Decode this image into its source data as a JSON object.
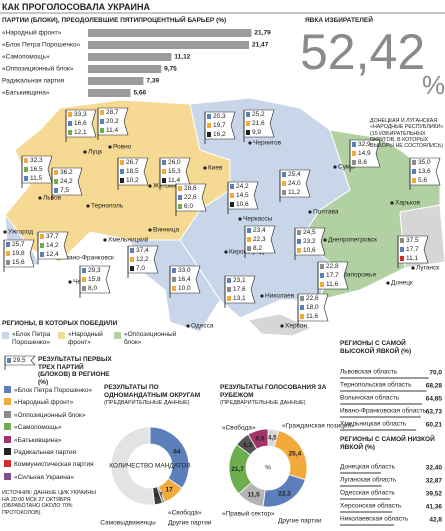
{
  "title": "КАК ПРОГОЛОСОВАЛА УКРАИНА",
  "chart_data": [
    {
      "type": "bar",
      "title": "ПАРТИИ (БЛОКИ), ПРЕОДОЛЕВШИЕ ПЯТИПРОЦЕНТНЫЙ БАРЬЕР (%)",
      "categories": [
        "«Народный фронт»",
        "«Блок Петра Порошенко»",
        "«Самопомощь»",
        "«Оппозиционный блок»",
        "Радикальная партия",
        "«Батькивщина»"
      ],
      "values": [
        21.79,
        21.47,
        11.12,
        9.75,
        7.39,
        5.66
      ],
      "value_labels": [
        "21,79",
        "21,47",
        "11,12",
        "9,75",
        "7,39",
        "5,66"
      ],
      "color": "#9b9b9b",
      "xlim": [
        0,
        22
      ]
    },
    {
      "type": "donut",
      "title": "РЕЗУЛЬТАТЫ ПО ОДНОМАНДАТНЫМ ОКРУГАМ",
      "subtitle": "(ПРЕДВАРИТЕЛЬНЫЕ ДАННЫЕ)",
      "center_label": "КОЛИЧЕСТВО МАНДАТОВ",
      "categories": [
        null,
        null,
        "Другие партии",
        "«Свобода»",
        "Самовыдвиженцы"
      ],
      "values": [
        64,
        17,
        2,
        6,
        96
      ],
      "value_labels": [
        "64",
        "17",
        "2",
        "6",
        null
      ],
      "colors": [
        "#5b7fb9",
        "#f2aa3c",
        "#8c8c8c",
        "#3d3d3d",
        "#e3e3e3"
      ]
    },
    {
      "type": "donut",
      "title": "РЕЗУЛЬТАТЫ ГОЛОСОВАНИЯ ЗА РУБЕЖОМ",
      "subtitle": "(ПРЕДВАРИТЕЛЬНЫЕ ДАННЫЕ)",
      "center_label": "%",
      "categories": [
        "«Гражданская позиция»",
        null,
        null,
        "Другие партии",
        null,
        "«Правый сектор»",
        "«Свобода»"
      ],
      "values": [
        4.5,
        25.4,
        22.2,
        11.5,
        21.7,
        6.3,
        8.5
      ],
      "value_labels": [
        "4,5",
        "25,4",
        "22,2",
        "11,5",
        "21,7",
        "6,3",
        "8,5"
      ],
      "colors": [
        "#d9d9d9",
        "#f2aa3c",
        "#5b7fb9",
        "#b5b5b5",
        "#6fae4f",
        "#555555",
        "#a0346b"
      ]
    },
    {
      "type": "list",
      "title": "РЕГИОНЫ С САМОЙ ВЫСОКОЙ ЯВКОЙ (%)",
      "categories": [
        "Львовская область",
        "Тернопольская область",
        "Волынская область",
        "Ивано-Франковская область",
        "Хмельницкая область"
      ],
      "values": [
        70.0,
        68.28,
        64.85,
        63.73,
        60.21
      ],
      "value_labels": [
        "70,0",
        "68,28",
        "64,85",
        "63,73",
        "60,21"
      ],
      "color": "#9b9b9b",
      "xlim": [
        0,
        75
      ]
    },
    {
      "type": "list",
      "title": "РЕГИОНЫ С САМОЙ НИЗКОЙ ЯВКОЙ (%)",
      "categories": [
        "Донецкая область",
        "Луганская область",
        "Одесская область",
        "Херсонская область",
        "Николаевская область"
      ],
      "values": [
        32.4,
        32.87,
        39.52,
        41.36,
        42.8
      ],
      "value_labels": [
        "32,40",
        "32,87",
        "39,52",
        "41,36",
        "42,8"
      ],
      "color": "#9b9b9b",
      "xlim": [
        0,
        75
      ]
    }
  ],
  "turnout": {
    "title": "ЯВКА ИЗБИРАТЕЛЕЙ",
    "value": 52.42,
    "value_label": "52,42",
    "unit": "%"
  },
  "note": "ДОНЕЦКАЯ И ЛУГАНСКАЯ «НАРОДНЫЕ РЕСПУБЛИКИ» (15 ИЗБИРАТЕЛЬНЫХ ОКРУГОВ, В КОТОРЫХ ВЫБОРЫ НЕ СОСТОЯЛИСЬ)",
  "map": {
    "cities": [
      "Луцк",
      "Ровно",
      "Львов",
      "Тернополь",
      "Хмельницкий",
      "Житомир",
      "Киев",
      "Чернигов",
      "Сумы",
      "Харьков",
      "Полтава",
      "Черкассы",
      "Винница",
      "Ужгород",
      "Ивано-Франковск",
      "Черновцы",
      "Кировоград",
      "Днепропетровск",
      "Запорожье",
      "Донецк",
      "Луганск",
      "Николаев",
      "Херсон",
      "Одесса"
    ],
    "flags": [
      {
        "values": [
          33.3,
          16.6,
          12.1
        ],
        "value_labels": [
          "33,3",
          "16,6",
          "12,1"
        ]
      },
      {
        "values": [
          28.7,
          20.2,
          11.4
        ],
        "value_labels": [
          "28,7",
          "20,2",
          "11,4"
        ]
      },
      {
        "values": [
          20.3,
          19.7,
          16.2
        ],
        "value_labels": [
          "20,3",
          "19,7",
          "16,2"
        ]
      },
      {
        "values": [
          25.2,
          21.6,
          9.9
        ],
        "value_labels": [
          "25,2",
          "21,6",
          "9,9"
        ]
      },
      {
        "values": [
          32.3,
          16.5,
          11.5
        ],
        "value_labels": [
          "32,3",
          "16,5",
          "11,5"
        ]
      },
      {
        "values": [
          36.2,
          24.2,
          7.5
        ],
        "value_labels": [
          "36,2",
          "24,2",
          "7,5"
        ]
      },
      {
        "values": [
          26.7,
          18.5,
          10.2
        ],
        "value_labels": [
          "26,7",
          "18,5",
          "10,2"
        ]
      },
      {
        "values": [
          26.0,
          15.3,
          11.4
        ],
        "value_labels": [
          "26,0",
          "15,3",
          "11,4"
        ]
      },
      {
        "values": [
          28.6,
          22.6,
          6.0
        ],
        "value_labels": [
          "28,6",
          "22,6",
          "6,0"
        ]
      },
      {
        "values": [
          24.2,
          14.5,
          10.6
        ],
        "value_labels": [
          "24,2",
          "14,5",
          "10,6"
        ]
      },
      {
        "values": [
          25.4,
          24.0,
          11.2
        ],
        "value_labels": [
          "25,4",
          "24,0",
          "11,2"
        ]
      },
      {
        "values": [
          32.9,
          14.9,
          8.6
        ],
        "value_labels": [
          "32,9",
          "14,9",
          "8,6"
        ]
      },
      {
        "values": [
          35.0,
          13.6,
          5.6
        ],
        "value_labels": [
          "35,0",
          "13,6",
          "5,6"
        ]
      },
      {
        "values": [
          25.7,
          19.8,
          15.6
        ],
        "value_labels": [
          "25,7",
          "19,8",
          "15,6"
        ]
      },
      {
        "values": [
          37.7,
          14.2,
          12.4
        ],
        "value_labels": [
          "37,7",
          "14,2",
          "12,4"
        ]
      },
      {
        "values": [
          29.3,
          15.8,
          8.0
        ],
        "value_labels": [
          "29,3",
          "15,8",
          "8,0"
        ]
      },
      {
        "values": [
          37.4,
          12.2,
          7.0
        ],
        "value_labels": [
          "37,4",
          "12,2",
          "7,0"
        ]
      },
      {
        "values": [
          23.4,
          22.3,
          8.2
        ],
        "value_labels": [
          "23,4",
          "22,3",
          "8,2"
        ]
      },
      {
        "values": [
          24.5,
          23.2,
          10.6
        ],
        "value_labels": [
          "24,5",
          "23,2",
          "10,6"
        ]
      },
      {
        "values": [
          37.5,
          17.7,
          11.1
        ],
        "value_labels": [
          "37,5",
          "17,7",
          "11,1"
        ]
      },
      {
        "values": [
          33.0,
          16.4,
          10.0
        ],
        "value_labels": [
          "33,0",
          "16,4",
          "10,0"
        ]
      },
      {
        "values": [
          23.1,
          17.6,
          13.1
        ],
        "value_labels": [
          "23,1",
          "17,6",
          "13,1"
        ]
      },
      {
        "values": [
          22.6,
          18.0,
          11.6
        ],
        "value_labels": [
          "22,6",
          "18,0",
          "11,6"
        ]
      },
      {
        "values": [
          22.8,
          17.7,
          11.6
        ],
        "value_labels": [
          "22,8",
          "17,7",
          "11,6"
        ]
      }
    ]
  },
  "regions_legend": {
    "title": "РЕГИОНЫ, В КОТОРЫХ ПОБЕДИЛИ",
    "items": [
      "«Блок Петра Порошенко»",
      "«Народный фронт»",
      "«Оппозиционный блок»"
    ]
  },
  "flag_legend": {
    "value": 29.5,
    "value_label": "29,5",
    "text": "РЕЗУЛЬТАТЫ ПЕРВЫХ ТРЕХ ПАРТИЙ (БЛОКОВ) В РЕГИОНЕ (%)"
  },
  "parties_legend": [
    "«Блок Петра Порошенко»",
    "«Народный фронт»",
    "«Оппозиционный блок»",
    "«Самопомощь»",
    "«Батькивщина»",
    "Радикальная партия",
    "Коммунистическая партия",
    "«Сильная Украина»"
  ],
  "source": "ИСТОЧНИК: ДАННЫЕ ЦИК УКРАИНЫ НА 20:00 МСК 27 ОКТЯБРЯ (ОБРАБОТАНО ОКОЛО 70% ПРОТОКОЛОВ)."
}
